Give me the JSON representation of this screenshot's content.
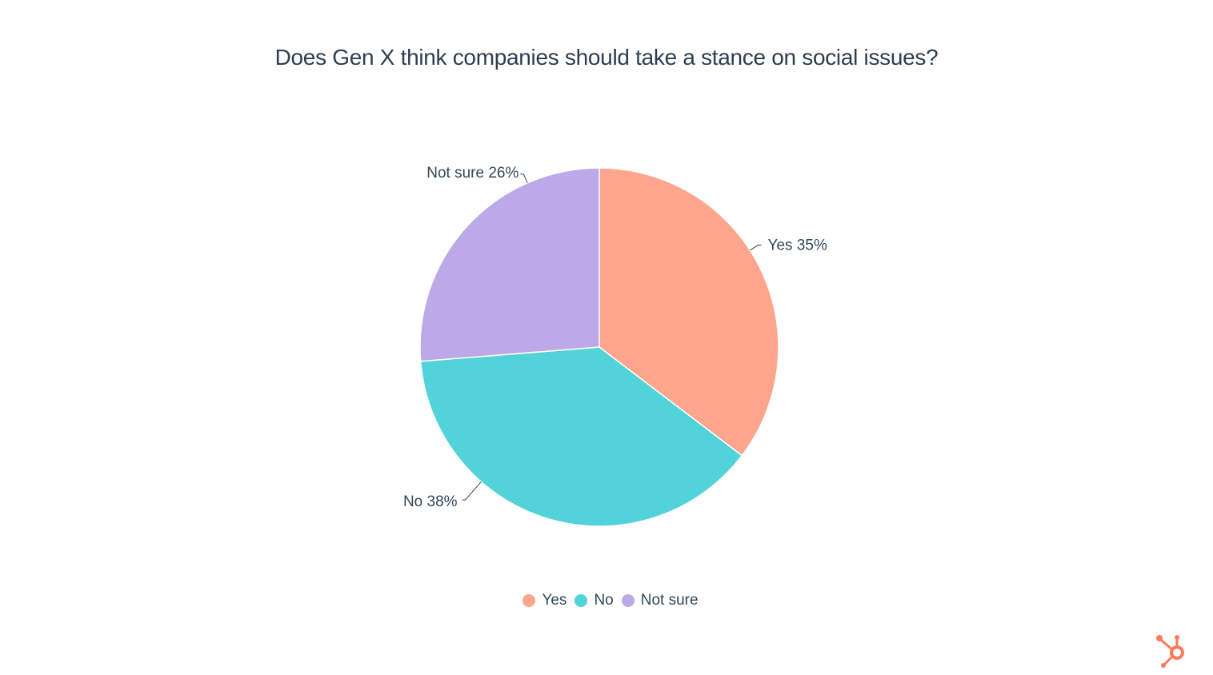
{
  "chart_data": {
    "type": "pie",
    "title": "Does Gen X think companies should take a stance on social issues?",
    "categories": [
      "Yes",
      "No",
      "Not sure"
    ],
    "values": [
      35,
      38,
      26
    ],
    "unit": "%",
    "slice_labels": [
      "Yes 35%",
      "No 38%",
      "Not sure 26%"
    ],
    "colors": [
      "#fea58e",
      "#51d3d9",
      "#bda8e8"
    ],
    "legend": {
      "placement": "bottom-center",
      "entries": [
        "Yes",
        "No",
        "Not sure"
      ]
    }
  },
  "branding": {
    "logo_icon": "hubspot-sprocket-icon",
    "logo_color": "#ff7a59"
  }
}
